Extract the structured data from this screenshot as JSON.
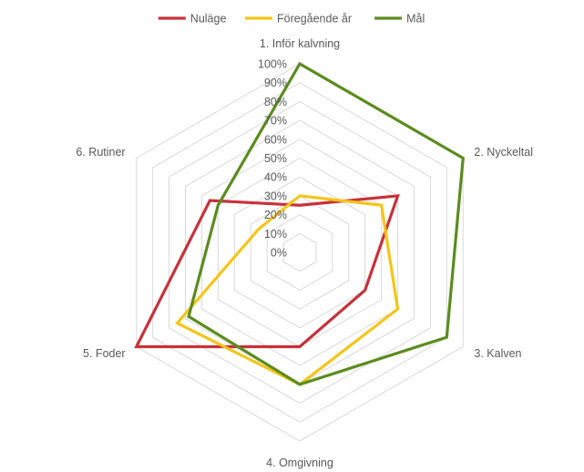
{
  "chart_data": {
    "type": "radar",
    "categories": [
      "1. Inför kalvning",
      "2. Nyckeltal",
      "3. Kalven",
      "4. Omgivning",
      "5. Foder",
      "6. Rutiner"
    ],
    "ticks": [
      "0%",
      "10%",
      "20%",
      "30%",
      "40%",
      "50%",
      "60%",
      "70%",
      "80%",
      "90%",
      "100%"
    ],
    "rlim": [
      0,
      1
    ],
    "grid": true,
    "legend_position": "top",
    "series": [
      {
        "name": "Nuläge",
        "color": "#C8323A",
        "values": [
          0.25,
          0.6,
          0.4,
          0.5,
          1.0,
          0.55
        ]
      },
      {
        "name": "Föregående år",
        "color": "#F5C518",
        "values": [
          0.3,
          0.5,
          0.6,
          0.7,
          0.75,
          0.25
        ]
      },
      {
        "name": "Mål",
        "color": "#5B8C1E",
        "values": [
          1.0,
          1.0,
          0.9,
          0.7,
          0.68,
          0.5
        ]
      }
    ]
  }
}
